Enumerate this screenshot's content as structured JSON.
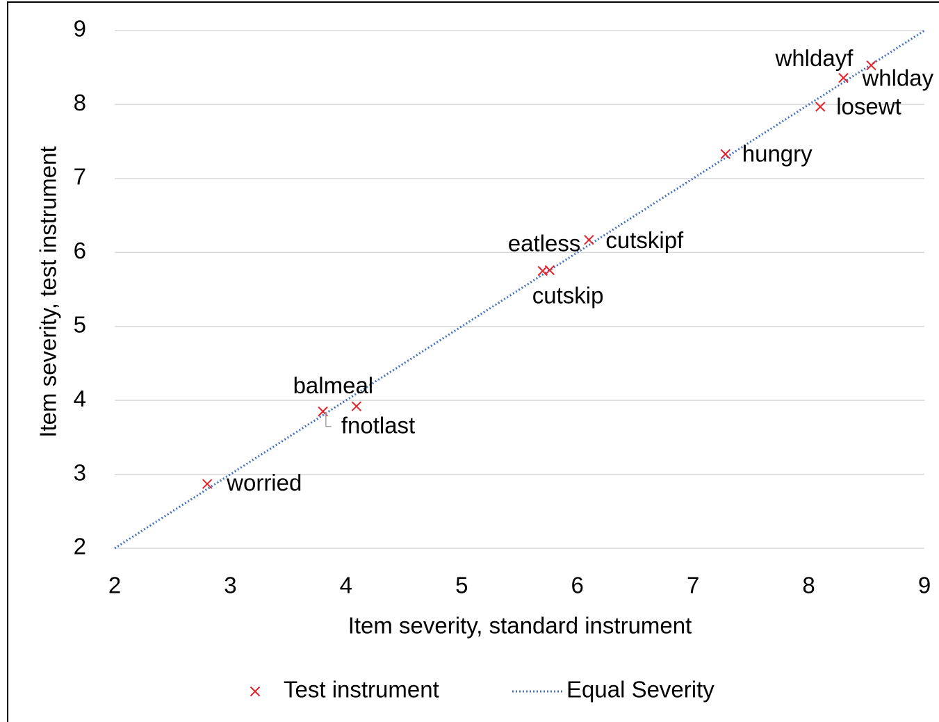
{
  "chart_data": {
    "type": "scatter",
    "xlabel": "Item severity, standard instrument",
    "ylabel": "Item severity, test instrument",
    "xlim": [
      2,
      9
    ],
    "xticks": [
      2,
      3,
      4,
      5,
      6,
      7,
      8,
      9
    ],
    "ylim": [
      2,
      9
    ],
    "yticks": [
      2,
      3,
      4,
      5,
      6,
      7,
      8,
      9
    ],
    "grid": true,
    "legend": "bottom",
    "series": [
      {
        "name": "Test instrument",
        "color": "#e3242b",
        "marker": "x",
        "x": [
          2.8,
          3.8,
          4.09,
          5.7,
          5.76,
          6.1,
          7.28,
          8.1,
          8.3,
          8.54
        ],
        "values": [
          2.87,
          3.85,
          3.92,
          5.75,
          5.76,
          6.17,
          7.33,
          7.97,
          8.36,
          8.53
        ],
        "labels": [
          "worried",
          "balmeal",
          "fnotlast",
          "eatless",
          "cutskip",
          "cutskipf",
          "hungry",
          "losewt",
          "whldayf",
          "whlday"
        ]
      },
      {
        "name": "Equal Severity",
        "color": "#4472c4",
        "marker": "dotted-line",
        "x": [
          2,
          9
        ],
        "values": [
          2,
          9
        ]
      }
    ]
  }
}
